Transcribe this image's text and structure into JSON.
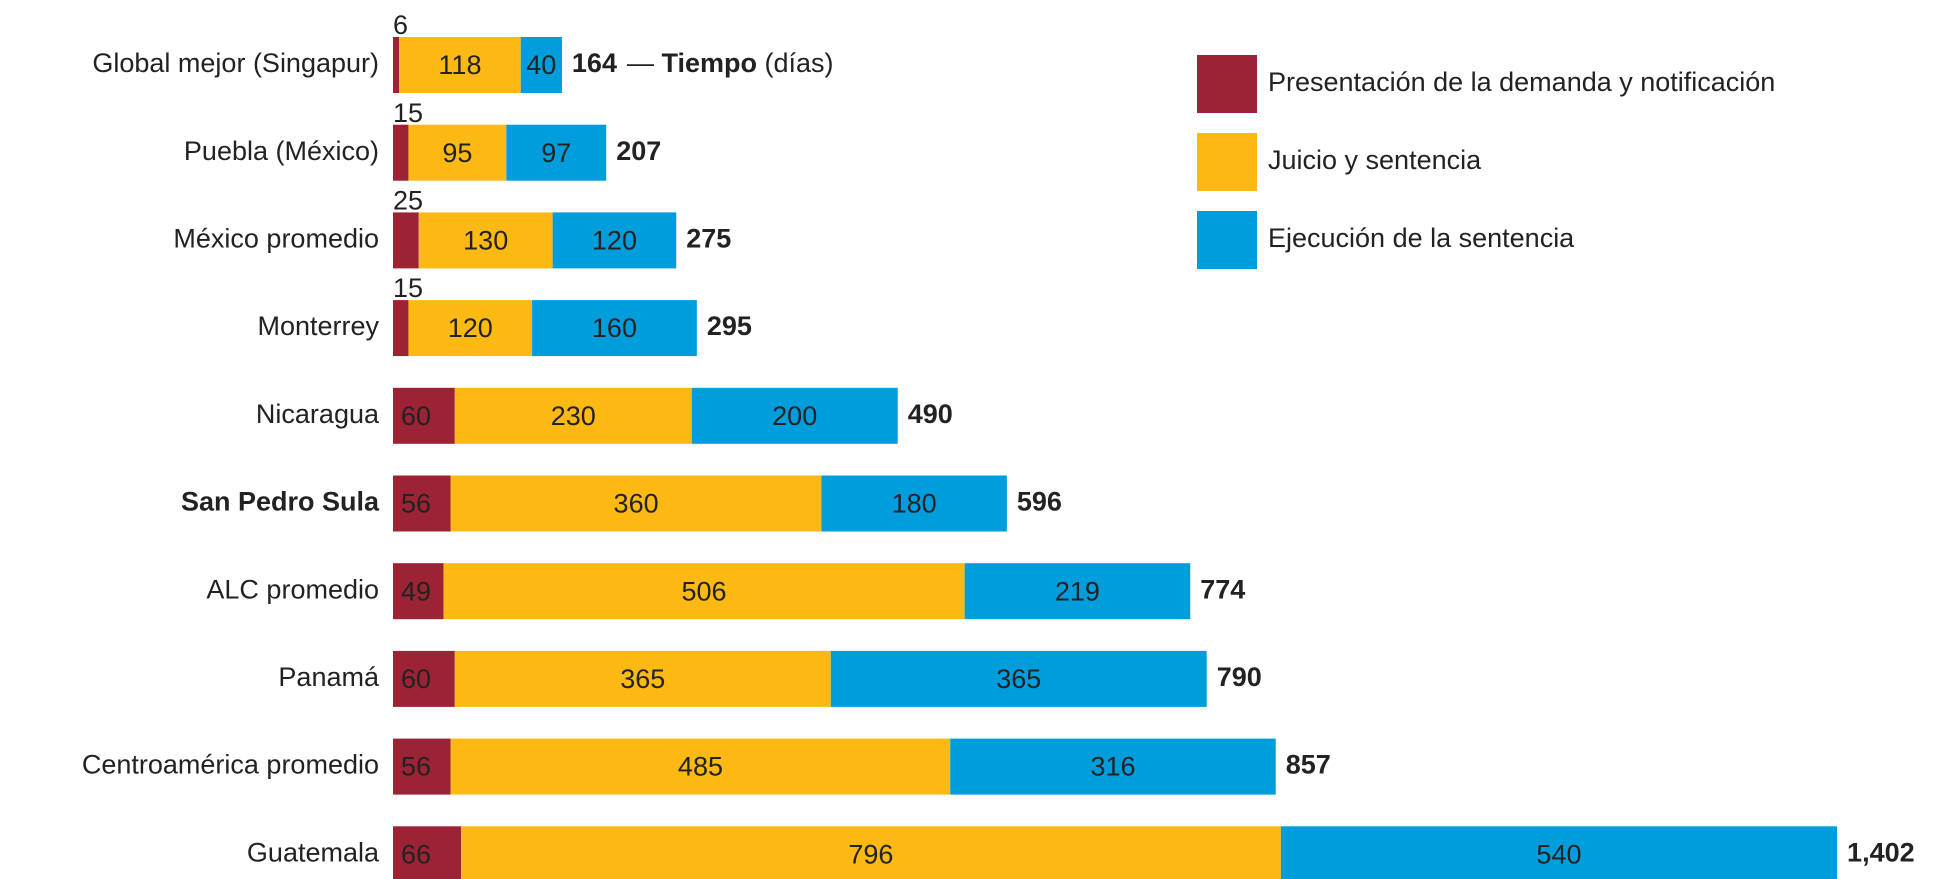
{
  "chart_data": {
    "type": "stacked-bar-horizontal",
    "categories": [
      "Global mejor (Singapur)",
      "Puebla (México)",
      "México promedio",
      "Monterrey",
      "Nicaragua",
      "San Pedro Sula",
      "ALC promedio",
      "Panamá",
      "Centroamérica promedio",
      "Guatemala"
    ],
    "series": [
      {
        "name": "Presentación de la demanda y notificación",
        "color": "#9b2335",
        "values": [
          6,
          15,
          25,
          15,
          60,
          56,
          49,
          60,
          56,
          66
        ]
      },
      {
        "name": "Juicio y sentencia",
        "color": "#fdb913",
        "values": [
          118,
          95,
          130,
          120,
          230,
          360,
          506,
          365,
          485,
          796
        ]
      },
      {
        "name": "Ejecución de la sentencia",
        "color": "#009ddc",
        "values": [
          40,
          97,
          120,
          160,
          200,
          180,
          219,
          365,
          316,
          540
        ]
      }
    ],
    "totals": [
      164,
      207,
      275,
      295,
      490,
      596,
      774,
      790,
      857,
      {
        "value": 1402,
        "label": "1,402"
      }
    ],
    "annotation": {
      "dash": "—",
      "bold": "Tiempo",
      "rest": "(días)"
    },
    "highlight_index": 5,
    "highlight_color": "#9b2335"
  }
}
